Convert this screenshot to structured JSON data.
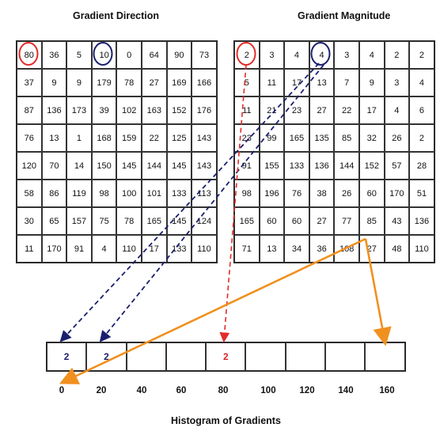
{
  "direction": {
    "title": "Gradient Direction",
    "values": [
      [
        "80",
        "36",
        "5",
        "10",
        "0",
        "64",
        "90",
        "73"
      ],
      [
        "37",
        "9",
        "9",
        "179",
        "78",
        "27",
        "169",
        "166"
      ],
      [
        "87",
        "136",
        "173",
        "39",
        "102",
        "163",
        "152",
        "176"
      ],
      [
        "76",
        "13",
        "1",
        "168",
        "159",
        "22",
        "125",
        "143"
      ],
      [
        "120",
        "70",
        "14",
        "150",
        "145",
        "144",
        "145",
        "143"
      ],
      [
        "58",
        "86",
        "119",
        "98",
        "100",
        "101",
        "133",
        "113"
      ],
      [
        "30",
        "65",
        "157",
        "75",
        "78",
        "165",
        "145",
        "124"
      ],
      [
        "11",
        "170",
        "91",
        "4",
        "110",
        "17",
        "133",
        "110"
      ]
    ]
  },
  "magnitude": {
    "title": "Gradient Magnitude",
    "values": [
      [
        "2",
        "3",
        "4",
        "4",
        "3",
        "4",
        "2",
        "2"
      ],
      [
        "5",
        "11",
        "17",
        "13",
        "7",
        "9",
        "3",
        "4"
      ],
      [
        "11",
        "21",
        "23",
        "27",
        "22",
        "17",
        "4",
        "6"
      ],
      [
        "23",
        "99",
        "165",
        "135",
        "85",
        "32",
        "26",
        "2"
      ],
      [
        "91",
        "155",
        "133",
        "136",
        "144",
        "152",
        "57",
        "28"
      ],
      [
        "98",
        "196",
        "76",
        "38",
        "26",
        "60",
        "170",
        "51"
      ],
      [
        "165",
        "60",
        "60",
        "27",
        "77",
        "85",
        "43",
        "136"
      ],
      [
        "71",
        "13",
        "34",
        "36",
        "108",
        "27",
        "48",
        "110"
      ]
    ]
  },
  "histogram": {
    "title": "Histogram of Gradients",
    "bins": [
      "2",
      "2",
      "",
      "",
      "2",
      "",
      "",
      "",
      ""
    ],
    "bin_colors": [
      "#1b1f6e",
      "#1b1f6e",
      "",
      "",
      "#d62728",
      "",
      "",
      "",
      ""
    ],
    "ticks": [
      "0",
      "20",
      "40",
      "60",
      "80",
      "100",
      "120",
      "140",
      "160"
    ]
  },
  "colors": {
    "red": "#e32b2b",
    "navy": "#1b1f6e",
    "orange": "#f0901e"
  }
}
